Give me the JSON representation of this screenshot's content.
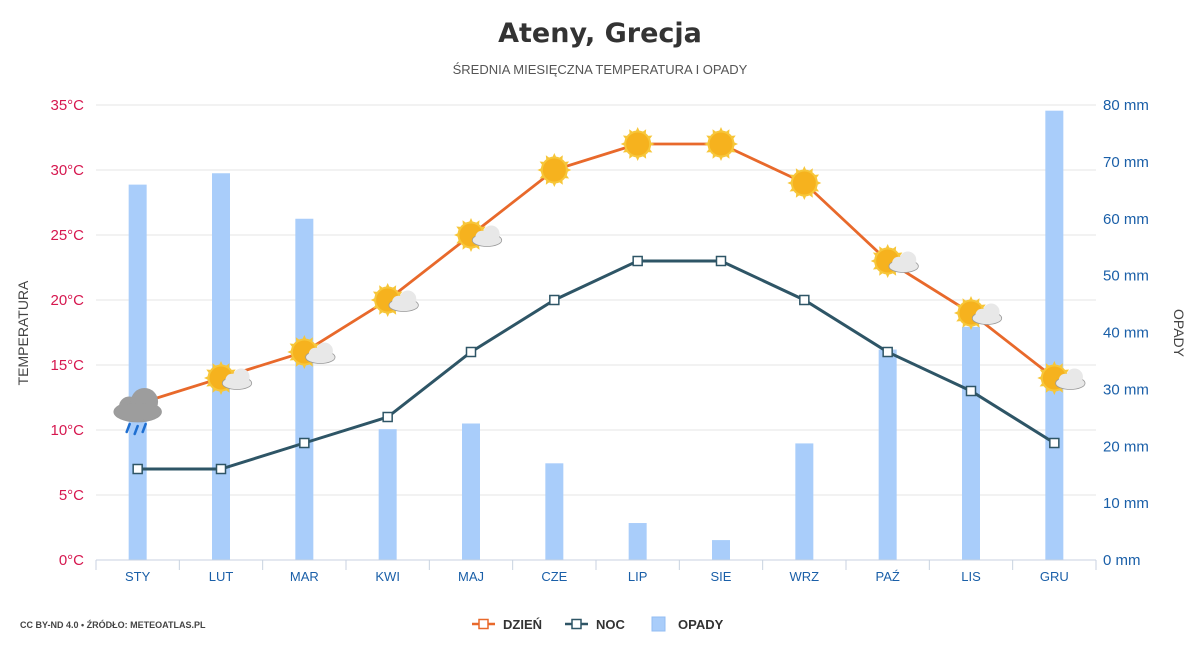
{
  "chart_data": {
    "type": "line",
    "title": "Ateny, Grecja",
    "subtitle": "ŚREDNIA MIESIĘCZNA TEMPERATURA I OPADY",
    "categories": [
      "STY",
      "LUT",
      "MAR",
      "KWI",
      "MAJ",
      "CZE",
      "LIP",
      "SIE",
      "WRZ",
      "PAŹ",
      "LIS",
      "GRU"
    ],
    "series": [
      {
        "name": "DZIEŃ",
        "type": "line",
        "axis": "left",
        "color": "#e8692b",
        "values": [
          12,
          14,
          16,
          20,
          25,
          30,
          32,
          32,
          29,
          23,
          19,
          14
        ]
      },
      {
        "name": "NOC",
        "type": "line",
        "axis": "left",
        "color": "#2e5566",
        "values": [
          7,
          7,
          9,
          11,
          16,
          20,
          23,
          23,
          20,
          16,
          13,
          9
        ]
      },
      {
        "name": "OPADY",
        "type": "bar",
        "axis": "right",
        "color": "#a9cdfa",
        "values": [
          66,
          68,
          60,
          23,
          24,
          17,
          6.5,
          3.5,
          20.5,
          37,
          41,
          79
        ]
      }
    ],
    "weather_icons": [
      "rain",
      "sun-cloud",
      "sun-cloud",
      "sun-cloud",
      "sun-cloud",
      "sun",
      "sun",
      "sun",
      "sun",
      "sun-cloud",
      "sun-cloud",
      "sun-cloud"
    ],
    "y_left": {
      "label": "TEMPERATURA",
      "ylim": [
        0,
        35
      ],
      "ticks": [
        "0°C",
        "5°C",
        "10°C",
        "15°C",
        "20°C",
        "25°C",
        "30°C",
        "35°C"
      ]
    },
    "y_right": {
      "label": "OPADY",
      "ylim": [
        0,
        80
      ],
      "ticks": [
        "0 mm",
        "10 mm",
        "20 mm",
        "30 mm",
        "40 mm",
        "50 mm",
        "60 mm",
        "70 mm",
        "80 mm"
      ]
    },
    "grid": true,
    "legend_position": "bottom-center"
  },
  "credit": "CC BY-ND 4.0 • ŹRÓDŁO: METEOATLAS.PL",
  "colors": {
    "left_axis": "#d6174f",
    "right_axis": "#1a5fa8",
    "grid": "#e6e6e6"
  }
}
